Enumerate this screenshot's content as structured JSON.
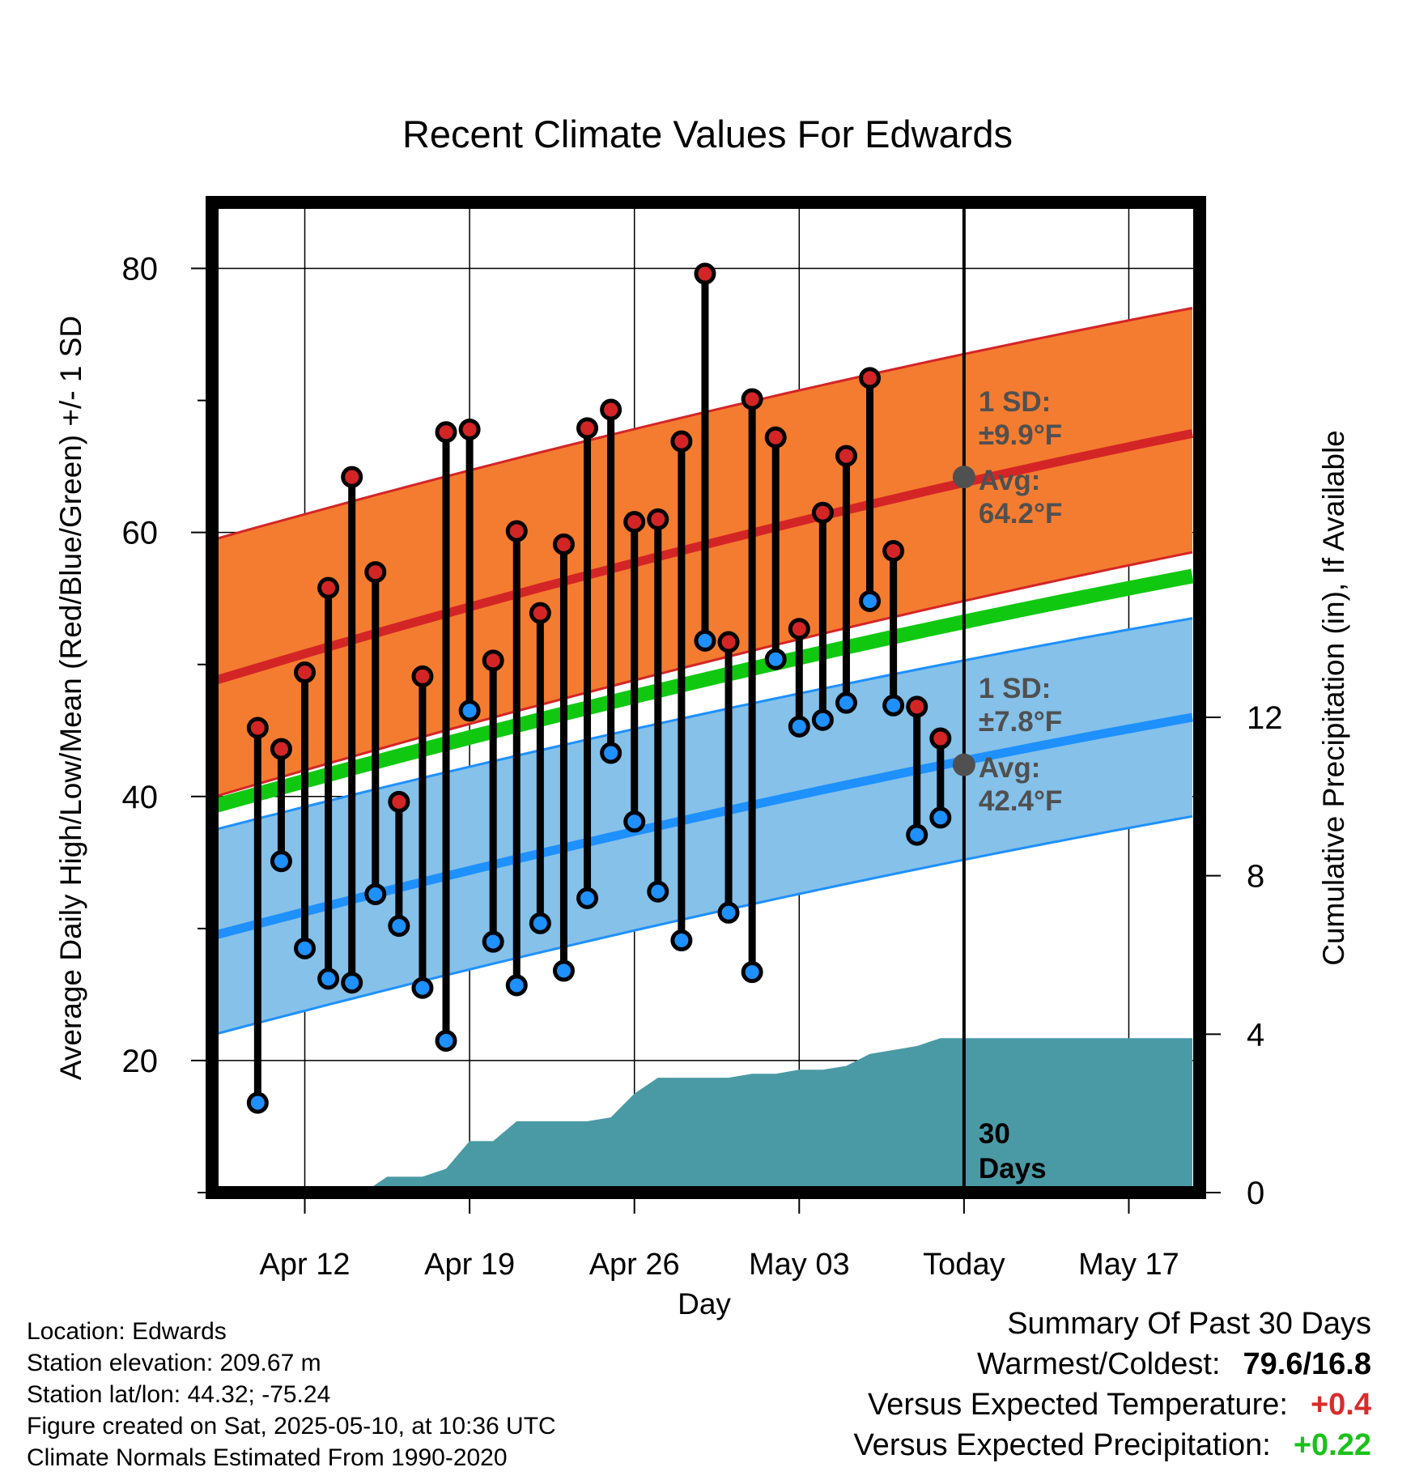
{
  "chart_data": {
    "type": "line",
    "title": "Recent Climate Values For Edwards",
    "xlabel": "Day",
    "ylabel_left": "Average Daily High/Low/Mean (Red/Blue/Green) +/- 1 SD",
    "ylabel_right": "Cumulative Precipitation (in), If Available",
    "x_ticks": [
      "Apr 12",
      "Apr 19",
      "Apr 26",
      "May 03",
      "Today",
      "May 17"
    ],
    "y_left_ticks": [
      20,
      40,
      60,
      80
    ],
    "y_left_range": [
      10,
      85
    ],
    "y_right_ticks": [
      0,
      4,
      8,
      12
    ],
    "y_right_range": [
      0,
      25
    ],
    "x_range_days": [
      -31.8,
      9.7
    ],
    "normals": {
      "high_mean": [
        48.8,
        67.5
      ],
      "high_upper": [
        59.5,
        77
      ],
      "high_lower": [
        40.0,
        58.5
      ],
      "low_mean": [
        29.5,
        46
      ],
      "low_upper": [
        37.5,
        53.5
      ],
      "low_lower": [
        22,
        38.5
      ],
      "daily_mean": [
        39.3,
        56.7
      ]
    },
    "daily_values": {
      "days": [
        -30,
        -29,
        -28,
        -27,
        -26,
        -25,
        -24,
        -23,
        -22,
        -21,
        -20,
        -19,
        -18,
        -17,
        -16,
        -15,
        -14,
        -13,
        -12,
        -11,
        -10,
        -9,
        -8,
        -7,
        -6,
        -5,
        -4,
        -3,
        -2,
        -1
      ],
      "highs": [
        45.2,
        43.6,
        49.4,
        55.8,
        64.2,
        57,
        39.6,
        49.1,
        67.6,
        67.8,
        50.3,
        60.1,
        53.9,
        59.1,
        67.9,
        69.3,
        60.8,
        61,
        66.9,
        79.6,
        51.7,
        70.1,
        67.2,
        52.7,
        61.5,
        65.8,
        71.7,
        58.6,
        46.8,
        44.4
      ],
      "lows": [
        16.8,
        35.1,
        28.5,
        26.2,
        25.9,
        32.6,
        30.2,
        25.5,
        21.5,
        46.5,
        29,
        25.7,
        30.4,
        26.8,
        32.3,
        43.3,
        38.1,
        32.8,
        29.1,
        51.8,
        31.2,
        26.7,
        50.4,
        45.3,
        45.8,
        47.1,
        54.8,
        46.9,
        37.1,
        38.4
      ]
    },
    "precipitation": {
      "days": [
        -31.8,
        -25.5,
        -24.5,
        -23,
        -22,
        -21,
        -20,
        -19,
        -18,
        -17,
        -16,
        -15,
        -14,
        -13,
        -12,
        -11,
        -10,
        -9,
        -8,
        -7,
        -6,
        -5,
        -4,
        -3,
        -2,
        -1,
        0,
        9.7
      ],
      "values": [
        0,
        0,
        0.4,
        0.4,
        0.6,
        1.3,
        1.3,
        1.8,
        1.8,
        1.8,
        1.8,
        1.9,
        2.5,
        2.9,
        2.9,
        2.9,
        2.9,
        3,
        3,
        3.1,
        3.1,
        3.2,
        3.5,
        3.6,
        3.7,
        3.9,
        3.9,
        3.9
      ]
    },
    "annotations": {
      "high_sd_label": "1 SD:",
      "high_sd_value": "±9.9°F",
      "high_avg_label": "Avg:",
      "high_avg_value": "64.2°F",
      "low_sd_label": "1 SD:",
      "low_sd_value": "±7.8°F",
      "low_avg_label": "Avg:",
      "low_avg_value": "42.4°F",
      "period_number": "30",
      "period_unit": "Days"
    },
    "today_markers": {
      "high_avg": 64.2,
      "low_avg": 42.4
    },
    "colors": {
      "high_band": "#f47c30",
      "high_line": "#d42526",
      "low_band": "#85c1e9",
      "low_line": "#1e90ff",
      "mean_line": "#11c811",
      "precip": "#4a9aa5",
      "high_dot": "#d42526",
      "low_dot": "#1e90ff",
      "avg_marker": "#505050",
      "annotation_text": "#505050"
    },
    "grid": true
  },
  "footer": {
    "location": "Location: Edwards",
    "elevation": "Station elevation: 209.67 m",
    "latlon": "Station lat/lon: 44.32; -75.24",
    "created": "Figure created on Sat, 2025-05-10, at 10:36 UTC",
    "normals": "Climate Normals Estimated From 1990-2020"
  },
  "summary": {
    "title": "Summary Of Past 30 Days",
    "warmest_label": "Warmest/Coldest:",
    "warmest_value": "79.6/16.8",
    "temp_label": "Versus Expected Temperature:",
    "temp_value": "+0.4",
    "precip_label": "Versus Expected Precipitation:",
    "precip_value": "+0.22"
  }
}
